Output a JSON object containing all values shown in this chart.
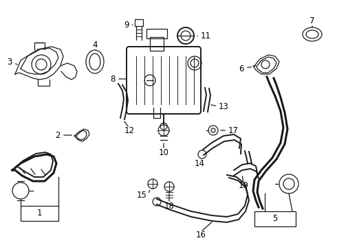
{
  "bg_color": "#ffffff",
  "line_color": "#1a1a1a",
  "text_color": "#000000",
  "lw_thick": 2.2,
  "lw_med": 1.4,
  "lw_thin": 0.9,
  "fs": 8.5
}
